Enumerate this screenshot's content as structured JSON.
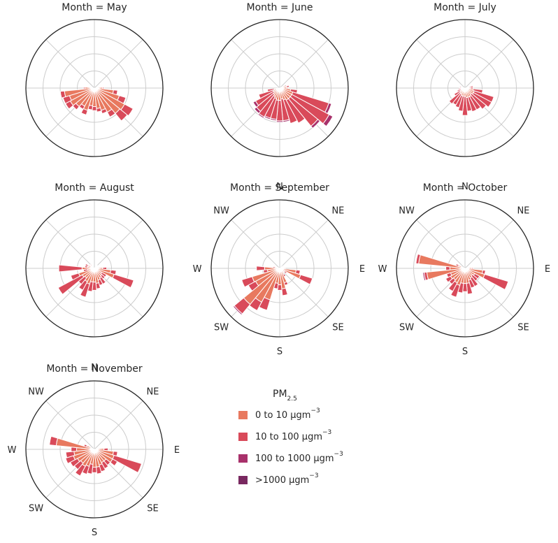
{
  "chart_data": {
    "type": "windrose",
    "legend": {
      "title": "PM",
      "title_sub": "2.5",
      "placement": "center",
      "entries": [
        {
          "label": "0 to 10 μgm",
          "sup": "−3",
          "color": "#e8795f"
        },
        {
          "label": "10 to 100 μgm",
          "sup": "−3",
          "color": "#d94a5a"
        },
        {
          "label": "100 to 1000 μgm",
          "sup": "−3",
          "color": "#a8316b"
        },
        {
          "label": ">1000 μgm",
          "sup": "−3",
          "color": "#792960"
        }
      ]
    },
    "direction_labels": [
      "N",
      "NE",
      "E",
      "SE",
      "S",
      "SW",
      "W",
      "NW"
    ],
    "grid": true,
    "panels": [
      {
        "title": "Month = May",
        "show_dirs": false,
        "sectors": [
          {
            "a": 90,
            "v": [
              0.12,
              0.02
            ]
          },
          {
            "a": 101.25,
            "v": [
              0.28,
              0.06
            ]
          },
          {
            "a": 112.5,
            "v": [
              0.38,
              0.1
            ]
          },
          {
            "a": 123.75,
            "v": [
              0.5,
              0.14
            ]
          },
          {
            "a": 135,
            "v": [
              0.48,
              0.14
            ]
          },
          {
            "a": 146.25,
            "v": [
              0.4,
              0.08
            ]
          },
          {
            "a": 157.5,
            "v": [
              0.34,
              0.05
            ]
          },
          {
            "a": 168.75,
            "v": [
              0.3,
              0.05
            ]
          },
          {
            "a": 180,
            "v": [
              0.27,
              0.06
            ]
          },
          {
            "a": 191.25,
            "v": [
              0.26,
              0.06
            ]
          },
          {
            "a": 202.5,
            "v": [
              0.34,
              0.07
            ]
          },
          {
            "a": 213.75,
            "v": [
              0.3,
              0.05
            ]
          },
          {
            "a": 225,
            "v": [
              0.35,
              0.06
            ]
          },
          {
            "a": 236.25,
            "v": [
              0.4,
              0.08
            ]
          },
          {
            "a": 247.5,
            "v": [
              0.38,
              0.1
            ]
          },
          {
            "a": 258.75,
            "v": [
              0.44,
              0.06
            ]
          },
          {
            "a": 270,
            "v": [
              0.14,
              0.02
            ]
          }
        ]
      },
      {
        "title": "Month = June",
        "show_dirs": false,
        "sectors": [
          {
            "a": 67.5,
            "v": [
              0.08,
              0.02
            ]
          },
          {
            "a": 78.75,
            "v": [
              0.1,
              0.04
            ]
          },
          {
            "a": 90,
            "v": [
              0.1,
              0.02
            ]
          },
          {
            "a": 101.25,
            "v": [
              0.16,
              0.1
            ]
          },
          {
            "a": 112.5,
            "v": [
              0.2,
              0.55,
              0.04
            ]
          },
          {
            "a": 123.75,
            "v": [
              0.2,
              0.62,
              0.06
            ]
          },
          {
            "a": 135,
            "v": [
              0.2,
              0.52,
              0.04
            ]
          },
          {
            "a": 146.25,
            "v": [
              0.2,
              0.38
            ]
          },
          {
            "a": 157.5,
            "v": [
              0.18,
              0.36
            ]
          },
          {
            "a": 168.75,
            "v": [
              0.16,
              0.32,
              0.02
            ]
          },
          {
            "a": 180,
            "v": [
              0.18,
              0.3,
              0.02
            ]
          },
          {
            "a": 191.25,
            "v": [
              0.18,
              0.28,
              0.02
            ]
          },
          {
            "a": 202.5,
            "v": [
              0.16,
              0.3,
              0.02
            ]
          },
          {
            "a": 213.75,
            "v": [
              0.14,
              0.34,
              0.02
            ]
          },
          {
            "a": 225,
            "v": [
              0.12,
              0.32,
              0.04
            ]
          },
          {
            "a": 236.25,
            "v": [
              0.1,
              0.3,
              0.04
            ]
          },
          {
            "a": 247.5,
            "v": [
              0.1,
              0.22
            ]
          },
          {
            "a": 258.75,
            "v": [
              0.08,
              0.1
            ]
          }
        ]
      },
      {
        "title": "Month = July",
        "show_dirs": false,
        "sectors": [
          {
            "a": 78.75,
            "v": [
              0.06,
              0.06
            ]
          },
          {
            "a": 90,
            "v": [
              0.08,
              0.04
            ]
          },
          {
            "a": 101.25,
            "v": [
              0.12,
              0.14
            ]
          },
          {
            "a": 112.5,
            "v": [
              0.14,
              0.3
            ]
          },
          {
            "a": 123.75,
            "v": [
              0.14,
              0.3
            ]
          },
          {
            "a": 135,
            "v": [
              0.12,
              0.28
            ]
          },
          {
            "a": 146.25,
            "v": [
              0.14,
              0.22
            ]
          },
          {
            "a": 157.5,
            "v": [
              0.14,
              0.22
            ]
          },
          {
            "a": 168.75,
            "v": [
              0.14,
              0.2
            ]
          },
          {
            "a": 180,
            "v": [
              0.12,
              0.28
            ]
          },
          {
            "a": 191.25,
            "v": [
              0.12,
              0.22
            ]
          },
          {
            "a": 202.5,
            "v": [
              0.12,
              0.18
            ]
          },
          {
            "a": 213.75,
            "v": [
              0.1,
              0.18
            ]
          },
          {
            "a": 225,
            "v": [
              0.1,
              0.2
            ]
          },
          {
            "a": 236.25,
            "v": [
              0.08,
              0.1
            ]
          },
          {
            "a": 247.5,
            "v": [
              0.06,
              0.06
            ]
          },
          {
            "a": 258.75,
            "v": [
              0.06,
              0.04
            ]
          },
          {
            "a": 270,
            "v": [
              0.04,
              0.04
            ]
          },
          {
            "a": 281.25,
            "v": [
              0.04,
              0.04
            ]
          }
        ]
      },
      {
        "title": "Month = August",
        "show_dirs": false,
        "sectors": [
          {
            "a": 33.75,
            "v": [
              0.04,
              0.02
            ]
          },
          {
            "a": 45,
            "v": [
              0.04,
              0.02
            ]
          },
          {
            "a": 67.5,
            "v": [
              0.04,
              0.02
            ]
          },
          {
            "a": 90,
            "v": [
              0.12,
              0.06
            ]
          },
          {
            "a": 101.25,
            "v": [
              0.24,
              0.08
            ]
          },
          {
            "a": 112.5,
            "v": [
              0.3,
              0.3
            ]
          },
          {
            "a": 123.75,
            "v": [
              0.12,
              0.08
            ]
          },
          {
            "a": 135,
            "v": [
              0.14,
              0.06
            ]
          },
          {
            "a": 146.25,
            "v": [
              0.16,
              0.1
            ]
          },
          {
            "a": 157.5,
            "v": [
              0.18,
              0.08
            ]
          },
          {
            "a": 168.75,
            "v": [
              0.22,
              0.08
            ]
          },
          {
            "a": 180,
            "v": [
              0.2,
              0.12
            ]
          },
          {
            "a": 191.25,
            "v": [
              0.2,
              0.14
            ]
          },
          {
            "a": 202.5,
            "v": [
              0.24,
              0.2
            ]
          },
          {
            "a": 213.75,
            "v": [
              0.22,
              0.14
            ]
          },
          {
            "a": 225,
            "v": [
              0.18,
              0.12
            ]
          },
          {
            "a": 236.25,
            "v": [
              0.2,
              0.4
            ]
          },
          {
            "a": 247.5,
            "v": [
              0.24,
              0.12
            ]
          },
          {
            "a": 258.75,
            "v": [
              0.1,
              0.06
            ]
          },
          {
            "a": 270,
            "v": [
              0.18,
              0.34
            ]
          },
          {
            "a": 281.25,
            "v": [
              0.1,
              0.04
            ]
          },
          {
            "a": 292.5,
            "v": [
              0.1,
              0.04
            ]
          },
          {
            "a": 315,
            "v": [
              0.06,
              0.02
            ]
          }
        ]
      },
      {
        "title": "Month = September",
        "show_dirs": true,
        "sectors": [
          {
            "a": 56.25,
            "v": [
              0.04,
              0.02
            ]
          },
          {
            "a": 90,
            "v": [
              0.06,
              0.02
            ]
          },
          {
            "a": 101.25,
            "v": [
              0.24,
              0.06
            ]
          },
          {
            "a": 112.5,
            "v": [
              0.32,
              0.18
            ]
          },
          {
            "a": 123.75,
            "v": [
              0.08,
              0.04
            ]
          },
          {
            "a": 135,
            "v": [
              0.06,
              0.02
            ]
          },
          {
            "a": 146.25,
            "v": [
              0.1,
              0.04
            ]
          },
          {
            "a": 157.5,
            "v": [
              0.22,
              0.04
            ]
          },
          {
            "a": 168.75,
            "v": [
              0.3,
              0.1
            ]
          },
          {
            "a": 180,
            "v": [
              0.24,
              0.08
            ]
          },
          {
            "a": 191.25,
            "v": [
              0.22,
              0.08
            ]
          },
          {
            "a": 202.5,
            "v": [
              0.48,
              0.16
            ]
          },
          {
            "a": 213.75,
            "v": [
              0.56,
              0.14
            ]
          },
          {
            "a": 225,
            "v": [
              0.68,
              0.18,
              0.02
            ]
          },
          {
            "a": 236.25,
            "v": [
              0.4,
              0.12
            ]
          },
          {
            "a": 247.5,
            "v": [
              0.42,
              0.16
            ]
          },
          {
            "a": 258.75,
            "v": [
              0.18,
              0.06
            ]
          },
          {
            "a": 270,
            "v": [
              0.22,
              0.12
            ]
          },
          {
            "a": 281.25,
            "v": [
              0.06,
              0.04
            ]
          },
          {
            "a": 292.5,
            "v": [
              0.04,
              0.02
            ]
          }
        ]
      },
      {
        "title": "Month = October",
        "show_dirs": true,
        "sectors": [
          {
            "a": 90,
            "v": [
              0.1,
              0.02
            ]
          },
          {
            "a": 101.25,
            "v": [
              0.26,
              0.04
            ]
          },
          {
            "a": 112.5,
            "v": [
              0.3,
              0.36
            ]
          },
          {
            "a": 123.75,
            "v": [
              0.16,
              0.08
            ]
          },
          {
            "a": 135,
            "v": [
              0.14,
              0.1
            ]
          },
          {
            "a": 146.25,
            "v": [
              0.16,
              0.14
            ]
          },
          {
            "a": 157.5,
            "v": [
              0.18,
              0.12
            ]
          },
          {
            "a": 168.75,
            "v": [
              0.22,
              0.16
            ]
          },
          {
            "a": 180,
            "v": [
              0.22,
              0.12
            ]
          },
          {
            "a": 191.25,
            "v": [
              0.22,
              0.14
            ]
          },
          {
            "a": 202.5,
            "v": [
              0.26,
              0.18
            ]
          },
          {
            "a": 213.75,
            "v": [
              0.24,
              0.14
            ]
          },
          {
            "a": 225,
            "v": [
              0.22,
              0.08
            ]
          },
          {
            "a": 236.25,
            "v": [
              0.24,
              0.08
            ]
          },
          {
            "a": 247.5,
            "v": [
              0.22,
              0.06
            ]
          },
          {
            "a": 258.75,
            "v": [
              0.56,
              0.04,
              0.02
            ]
          },
          {
            "a": 270,
            "v": [
              0.22,
              0.06
            ]
          },
          {
            "a": 281.25,
            "v": [
              0.68,
              0.04
            ]
          },
          {
            "a": 292.5,
            "v": [
              0.1,
              0.04
            ]
          }
        ]
      },
      {
        "title": "Month = November",
        "show_dirs": true,
        "sectors": [
          {
            "a": 90,
            "v": [
              0.14,
              0.06
            ]
          },
          {
            "a": 101.25,
            "v": [
              0.28,
              0.06
            ]
          },
          {
            "a": 112.5,
            "v": [
              0.3,
              0.42
            ]
          },
          {
            "a": 123.75,
            "v": [
              0.3,
              0.08
            ]
          },
          {
            "a": 135,
            "v": [
              0.22,
              0.08
            ]
          },
          {
            "a": 146.25,
            "v": [
              0.22,
              0.1
            ]
          },
          {
            "a": 157.5,
            "v": [
              0.24,
              0.1
            ]
          },
          {
            "a": 168.75,
            "v": [
              0.26,
              0.1
            ]
          },
          {
            "a": 180,
            "v": [
              0.26,
              0.08
            ]
          },
          {
            "a": 191.25,
            "v": [
              0.22,
              0.14
            ]
          },
          {
            "a": 202.5,
            "v": [
              0.26,
              0.12
            ]
          },
          {
            "a": 213.75,
            "v": [
              0.28,
              0.16
            ]
          },
          {
            "a": 225,
            "v": [
              0.26,
              0.12
            ]
          },
          {
            "a": 236.25,
            "v": [
              0.28,
              0.12
            ]
          },
          {
            "a": 247.5,
            "v": [
              0.32,
              0.12
            ]
          },
          {
            "a": 258.75,
            "v": [
              0.3,
              0.12
            ]
          },
          {
            "a": 270,
            "v": [
              0.26,
              0.08
            ]
          },
          {
            "a": 281.25,
            "v": [
              0.56,
              0.1
            ]
          },
          {
            "a": 292.5,
            "v": [
              0.12,
              0.04
            ]
          }
        ]
      }
    ]
  }
}
